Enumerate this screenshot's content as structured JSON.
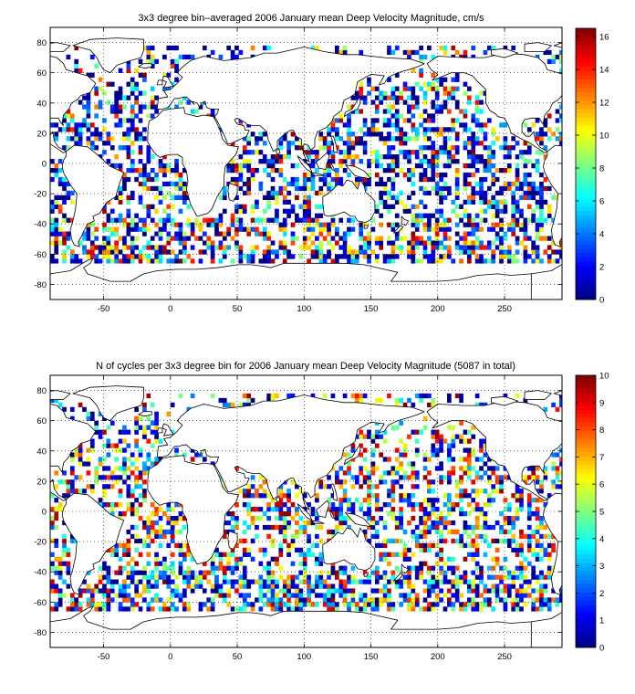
{
  "chart_data": [
    {
      "type": "heatmap",
      "title": "3x3 degree bin–averaged 2006 January mean Deep Velocity Magnitude, cm/s",
      "xlabel": "",
      "ylabel": "",
      "xlim": [
        -90,
        293
      ],
      "ylim": [
        -90,
        90
      ],
      "x_ticks": [
        "-50",
        "0",
        "50",
        "100",
        "150",
        "200",
        "250"
      ],
      "y_ticks": [
        "80",
        "60",
        "40",
        "20",
        "0",
        "-20",
        "-40",
        "-60",
        "-80"
      ],
      "bin_size_deg": 3,
      "grid": "dotted",
      "colorbar": {
        "min": 0,
        "max": 16.5,
        "ticks": [
          "0",
          "2",
          "4",
          "6",
          "8",
          "10",
          "12",
          "14",
          "16"
        ]
      },
      "colormap": "jet",
      "seed": 11,
      "skew": 2.4
    },
    {
      "type": "heatmap",
      "title": "N of cycles per 3x3 degree bin for 2006 January mean Deep Velocity Magnitude (5087 in total)",
      "xlabel": "",
      "ylabel": "",
      "xlim": [
        -90,
        293
      ],
      "ylim": [
        -90,
        90
      ],
      "x_ticks": [
        "-50",
        "0",
        "50",
        "100",
        "150",
        "200",
        "250"
      ],
      "y_ticks": [
        "80",
        "60",
        "40",
        "20",
        "0",
        "-20",
        "-40",
        "-60",
        "-80"
      ],
      "bin_size_deg": 3,
      "grid": "dotted",
      "colorbar": {
        "min": 0,
        "max": 10,
        "ticks": [
          "0",
          "1",
          "2",
          "3",
          "4",
          "5",
          "6",
          "7",
          "8",
          "9",
          "10"
        ]
      },
      "colormap": "jet",
      "seed": 29,
      "skew": 1.6
    }
  ]
}
